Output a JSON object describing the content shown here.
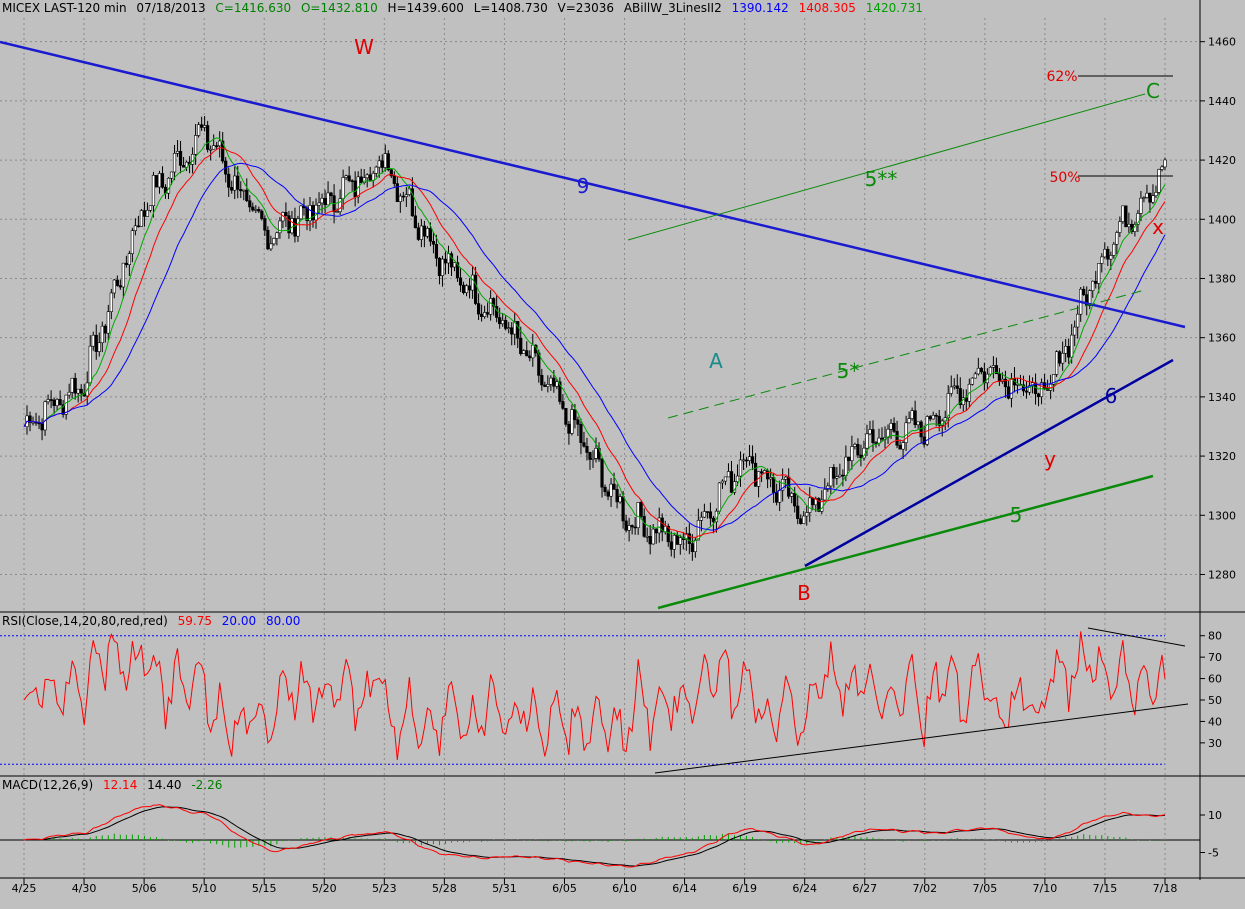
{
  "header": {
    "symbol": "MICEX LAST-120 min",
    "date": "07/18/2013",
    "close": "C=1416.630",
    "open": "O=1432.810",
    "high": "H=1439.600",
    "low": "L=1408.730",
    "volume": "V=23036",
    "indicator": "ABillW_3LinesII2",
    "ind_blue": "1390.142",
    "ind_red": "1408.305",
    "ind_green": "1420.731"
  },
  "rsi_header": {
    "label": "RSI(Close,14,20,80,red,red)",
    "value": "59.75",
    "lower": "20.00",
    "upper": "80.00"
  },
  "macd_header": {
    "label": "MACD(12,26,9)",
    "macd": "12.14",
    "signal": "14.40",
    "hist": "-2.26"
  },
  "colors": {
    "blue": "#0000ff",
    "red": "#ff0000",
    "green": "#00aa00",
    "price": "#000000",
    "waveRed": "#e00000",
    "waveGreen": "#0a8a0a",
    "teal": "#1a8a8a",
    "navy": "#0000a0"
  },
  "annotations": {
    "W": "W",
    "A": "A",
    "B": "B",
    "C": "C",
    "x": "x",
    "y": "y",
    "n9": "9",
    "n6": "6",
    "n5": "5",
    "n5s": "5*",
    "n5ss": "5**",
    "fib62": "62%",
    "fib50": "50%"
  },
  "chart_data": [
    {
      "type": "candlestick",
      "title": "MICEX LAST-120 min",
      "x_tick_labels": [
        "4/25",
        "4/30",
        "5/06",
        "5/10",
        "5/15",
        "5/20",
        "5/23",
        "5/28",
        "5/31",
        "6/05",
        "6/10",
        "6/14",
        "6/19",
        "6/24",
        "6/27",
        "7/02",
        "7/05",
        "7/10",
        "7/15",
        "7/18"
      ],
      "y_ticks": [
        1280,
        1300,
        1320,
        1340,
        1360,
        1380,
        1400,
        1420,
        1440,
        1460
      ],
      "ylim": [
        1268,
        1468
      ],
      "close_approx_by_tick": [
        1330,
        1345,
        1405,
        1430,
        1395,
        1405,
        1420,
        1385,
        1365,
        1335,
        1300,
        1290,
        1320,
        1300,
        1325,
        1330,
        1350,
        1340,
        1390,
        1417
      ],
      "series": [
        {
          "name": "blue line",
          "last": 1390.142
        },
        {
          "name": "red line",
          "last": 1408.305
        },
        {
          "name": "green line",
          "last": 1420.731
        }
      ],
      "grid": true
    },
    {
      "type": "line",
      "title": "RSI(Close,14,20,80,red,red)",
      "y_ticks": [
        30,
        40,
        50,
        60,
        70,
        80
      ],
      "levels": [
        20,
        80
      ],
      "last": 59.75
    },
    {
      "type": "line",
      "title": "MACD(12,26,9)",
      "y_ticks": [
        -5,
        10
      ],
      "macd": 12.14,
      "signal": 14.4,
      "histogram": -2.26
    }
  ]
}
